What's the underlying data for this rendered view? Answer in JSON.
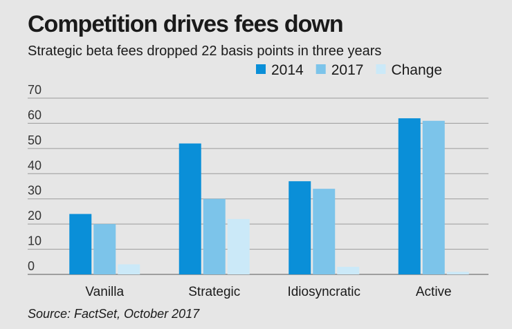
{
  "chart_data": {
    "type": "bar",
    "title": "Competition drives fees down",
    "subtitle": "Strategic beta fees dropped 22 basis points in three years",
    "source": "Source: FactSet, October 2017",
    "categories": [
      "Vanilla",
      "Strategic",
      "Idiosyncratic",
      "Active"
    ],
    "series": [
      {
        "name": "2014",
        "color": "#0a8fd8",
        "values": [
          24,
          52,
          37,
          62
        ]
      },
      {
        "name": "2017",
        "color": "#7cc4ea",
        "values": [
          20,
          30,
          34,
          61
        ]
      },
      {
        "name": "Change",
        "color": "#cbe9f8",
        "values": [
          4,
          22,
          3,
          1
        ]
      }
    ],
    "ylim": [
      0,
      70
    ],
    "yticks": [
      0,
      10,
      20,
      30,
      40,
      50,
      60,
      70
    ],
    "grid": true,
    "legend": "top-right"
  }
}
